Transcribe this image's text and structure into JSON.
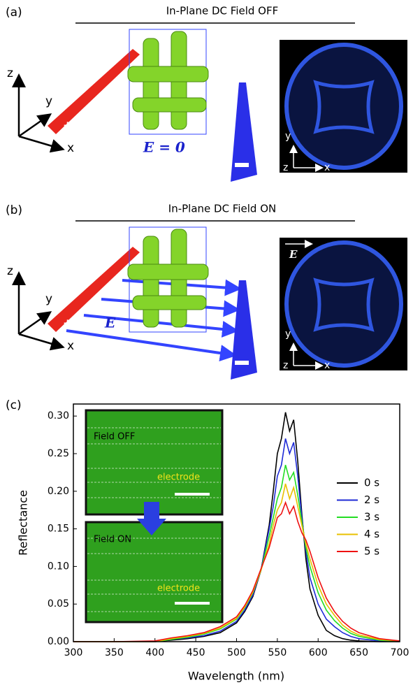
{
  "panels": [
    {
      "label": "(a)",
      "title": "In-Plane DC Field OFF",
      "field_label": "E = 0",
      "axes": [
        "z",
        "y",
        "x"
      ],
      "image_axes": [
        "y",
        "z",
        "x"
      ]
    },
    {
      "label": "(b)",
      "title": "In-Plane DC Field ON",
      "field_label": "E",
      "axes": [
        "z",
        "y",
        "x"
      ],
      "image_axes": [
        "y",
        "z",
        "x"
      ],
      "image_field_label": "E"
    }
  ],
  "chart_data": {
    "type": "line",
    "panel_label": "(c)",
    "x_label": "Wavelength (nm)",
    "y_label": "Reflectance",
    "xlim": [
      300,
      700
    ],
    "ylim": [
      0,
      0.316
    ],
    "xticks": [
      300,
      350,
      400,
      450,
      500,
      550,
      600,
      650,
      700
    ],
    "yticks": [
      {
        "value": 0,
        "label": "0.00"
      },
      0.05,
      {
        "value": 0.1,
        "label": "0.10"
      },
      0.15,
      {
        "value": 0.2,
        "label": "0.20"
      },
      0.25,
      {
        "value": 0.3,
        "label": "0.30"
      }
    ],
    "insets": [
      {
        "label": "Field OFF",
        "annotation": "electrode"
      },
      {
        "label": "Field ON",
        "annotation": "electrode"
      }
    ],
    "x": [
      300,
      350,
      400,
      420,
      440,
      460,
      480,
      500,
      510,
      520,
      530,
      540,
      545,
      550,
      555,
      560,
      565,
      570,
      575,
      580,
      585,
      590,
      600,
      610,
      620,
      630,
      640,
      650,
      675,
      700
    ],
    "series": [
      {
        "name": "0 s",
        "color": "#000000",
        "values": [
          0,
          0,
          0,
          0.002,
          0.004,
          0.007,
          0.012,
          0.025,
          0.04,
          0.06,
          0.095,
          0.155,
          0.2,
          0.25,
          0.27,
          0.305,
          0.28,
          0.295,
          0.24,
          0.17,
          0.11,
          0.07,
          0.035,
          0.015,
          0.008,
          0.004,
          0.002,
          0.001,
          0,
          0
        ]
      },
      {
        "name": "2 s",
        "color": "#1f2bd6",
        "values": [
          0,
          0,
          0,
          0.003,
          0.005,
          0.008,
          0.014,
          0.027,
          0.042,
          0.062,
          0.095,
          0.15,
          0.18,
          0.22,
          0.235,
          0.27,
          0.25,
          0.265,
          0.22,
          0.165,
          0.12,
          0.085,
          0.05,
          0.03,
          0.02,
          0.012,
          0.007,
          0.004,
          0.001,
          0
        ]
      },
      {
        "name": "3 s",
        "color": "#22dd22",
        "values": [
          0,
          0,
          0,
          0.003,
          0.006,
          0.01,
          0.017,
          0.03,
          0.045,
          0.065,
          0.095,
          0.14,
          0.165,
          0.19,
          0.205,
          0.235,
          0.215,
          0.225,
          0.195,
          0.16,
          0.125,
          0.1,
          0.065,
          0.042,
          0.028,
          0.018,
          0.011,
          0.007,
          0.002,
          0
        ]
      },
      {
        "name": "4 s",
        "color": "#e8c000",
        "values": [
          0,
          0,
          0,
          0.004,
          0.007,
          0.011,
          0.018,
          0.031,
          0.046,
          0.066,
          0.095,
          0.13,
          0.155,
          0.175,
          0.185,
          0.21,
          0.19,
          0.205,
          0.18,
          0.155,
          0.13,
          0.11,
          0.075,
          0.05,
          0.035,
          0.022,
          0.014,
          0.009,
          0.003,
          0.001
        ]
      },
      {
        "name": "5 s",
        "color": "#ee1111",
        "values": [
          0,
          0,
          0.001,
          0.005,
          0.008,
          0.012,
          0.02,
          0.033,
          0.048,
          0.068,
          0.097,
          0.125,
          0.145,
          0.165,
          0.17,
          0.185,
          0.17,
          0.18,
          0.16,
          0.145,
          0.135,
          0.12,
          0.085,
          0.058,
          0.04,
          0.027,
          0.018,
          0.012,
          0.004,
          0.001
        ]
      }
    ]
  }
}
